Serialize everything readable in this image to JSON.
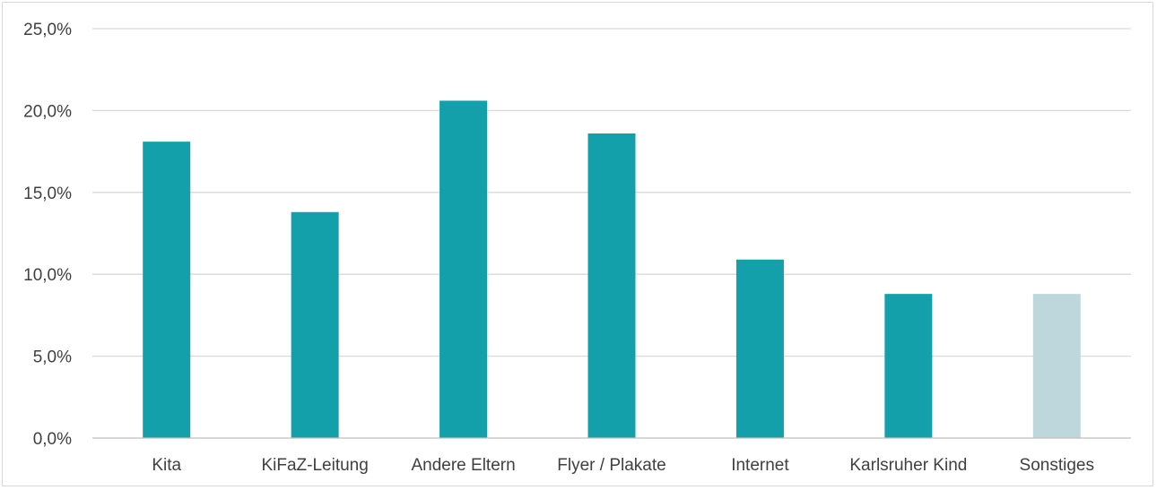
{
  "chart_data": {
    "type": "bar",
    "title": "",
    "xlabel": "",
    "ylabel": "",
    "ylim": [
      0,
      25
    ],
    "yticks": [
      0,
      5,
      10,
      15,
      20,
      25
    ],
    "ytick_labels": [
      "0,0%",
      "5,0%",
      "10,0%",
      "15,0%",
      "20,0%",
      "25,0%"
    ],
    "grid": true,
    "legend": "none",
    "categories": [
      "Kita",
      "KiFaZ-Leitung",
      "Andere Eltern",
      "Flyer / Plakate",
      "Internet",
      "Karlsruher Kind",
      "Sonstiges"
    ],
    "values": [
      18.1,
      13.8,
      20.6,
      18.6,
      10.9,
      8.8,
      8.8
    ],
    "colors": [
      "#14a0aa",
      "#14a0aa",
      "#14a0aa",
      "#14a0aa",
      "#14a0aa",
      "#14a0aa",
      "#bed7dc"
    ],
    "gridline_color": "#d9d9d9",
    "axis_color": "#bfbfbf"
  }
}
